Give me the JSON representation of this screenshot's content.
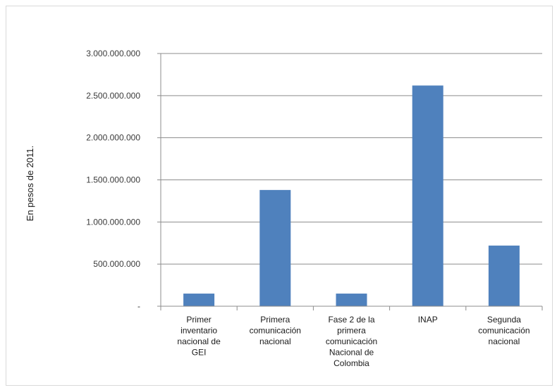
{
  "chart_data": {
    "type": "bar",
    "title": "",
    "xlabel": "",
    "ylabel": "En pesos de 2011.",
    "categories": [
      [
        "Primer",
        "inventario",
        "nacional de",
        "GEI"
      ],
      [
        "Primera",
        "comunicación",
        "nacional"
      ],
      [
        "Fase 2 de la",
        "primera",
        "comunicación",
        "Nacional de",
        "Colombia"
      ],
      [
        "INAP"
      ],
      [
        "Segunda",
        "comunicación",
        "nacional"
      ]
    ],
    "values": [
      150000000,
      1380000000,
      150000000,
      2620000000,
      720000000
    ],
    "ylim": [
      0,
      3000000000
    ],
    "yticks": [
      0,
      500000000,
      1000000000,
      1500000000,
      2000000000,
      2500000000,
      3000000000
    ],
    "ytick_labels": [
      "-",
      "500.000.000",
      "1.000.000.000",
      "1.500.000.000",
      "2.000.000.000",
      "2.500.000.000",
      "3.000.000.000"
    ],
    "grid": true,
    "legend": "none",
    "colors": {
      "bar": "#4f81bd",
      "grid": "#8c8c8c",
      "axis": "#8c8c8c"
    }
  }
}
